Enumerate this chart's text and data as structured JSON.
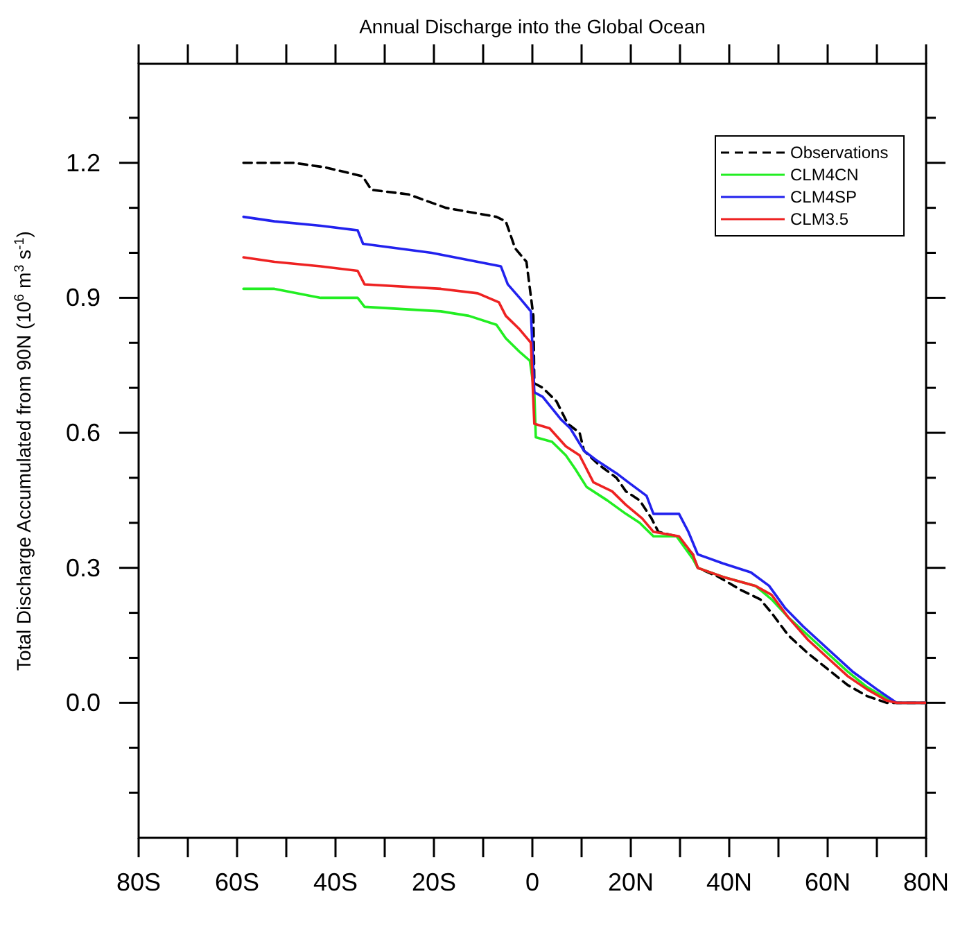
{
  "chart_data": {
    "type": "line",
    "title": "Annual Discharge into the Global Ocean",
    "ylabel": "Total Discharge Accumulated from 90N (10$^{6}$ m$^{3}$ s$^{-1}$)",
    "xlim": [
      -80,
      80
    ],
    "xticks": [
      {
        "value": -80,
        "label": "80S"
      },
      {
        "value": -70,
        "label": null
      },
      {
        "value": -60,
        "label": "60S"
      },
      {
        "value": -50,
        "label": null
      },
      {
        "value": -40,
        "label": "40S"
      },
      {
        "value": -30,
        "label": null
      },
      {
        "value": -20,
        "label": "20S"
      },
      {
        "value": -10,
        "label": null
      },
      {
        "value": 0,
        "label": "0"
      },
      {
        "value": 10,
        "label": null
      },
      {
        "value": 20,
        "label": "20N"
      },
      {
        "value": 30,
        "label": null
      },
      {
        "value": 40,
        "label": "40N"
      },
      {
        "value": 50,
        "label": null
      },
      {
        "value": 60,
        "label": "60N"
      },
      {
        "value": 70,
        "label": null
      },
      {
        "value": 80,
        "label": "80N"
      }
    ],
    "ylim": [
      -0.3,
      1.42
    ],
    "yticks": [
      {
        "value": -0.2,
        "label": null
      },
      {
        "value": -0.1,
        "label": null
      },
      {
        "value": 0,
        "label": "0.0"
      },
      {
        "value": 0.1,
        "label": null
      },
      {
        "value": 0.2,
        "label": null
      },
      {
        "value": 0.3,
        "label": "0.3"
      },
      {
        "value": 0.4,
        "label": null
      },
      {
        "value": 0.5,
        "label": null
      },
      {
        "value": 0.6,
        "label": "0.6"
      },
      {
        "value": 0.7,
        "label": null
      },
      {
        "value": 0.8,
        "label": null
      },
      {
        "value": 0.9,
        "label": "0.9"
      },
      {
        "value": 1.0,
        "label": null
      },
      {
        "value": 1.1,
        "label": null
      },
      {
        "value": 1.2,
        "label": "1.2"
      },
      {
        "value": 1.3,
        "label": null
      }
    ],
    "legend": "top right",
    "series": [
      {
        "name": "Observations",
        "color": "#000000",
        "line_style": "dashed",
        "x": [
          -58.7,
          -48.6,
          -42.1,
          -34.5,
          -32.7,
          -25.2,
          -17.6,
          -7.3,
          -5.4,
          -3.5,
          -1.2,
          0.2,
          0.4,
          2.1,
          4.9,
          7.2,
          9.6,
          10.5,
          13.4,
          17.1,
          19,
          21.8,
          24.2,
          25.6,
          29.3,
          32.6,
          33.6,
          37.8,
          42.5,
          46.3,
          48.6,
          52,
          56,
          60,
          64,
          68,
          72,
          80
        ],
        "values": [
          1.2,
          1.2,
          1.19,
          1.17,
          1.14,
          1.13,
          1.1,
          1.08,
          1.07,
          1.01,
          0.98,
          0.86,
          0.71,
          0.7,
          0.67,
          0.62,
          0.6,
          0.56,
          0.53,
          0.5,
          0.47,
          0.45,
          0.41,
          0.38,
          0.37,
          0.33,
          0.3,
          0.28,
          0.25,
          0.23,
          0.2,
          0.15,
          0.11,
          0.075,
          0.04,
          0.015,
          0,
          0
        ]
      },
      {
        "name": "CLM4CN",
        "color": "#22ee22",
        "line_style": "solid",
        "x": [
          -58.7,
          -52.4,
          -43,
          -35.5,
          -34.1,
          -18.6,
          -12.9,
          -7.3,
          -5.4,
          -2.6,
          -0.5,
          0.4,
          0.7,
          4,
          6.8,
          8.7,
          11,
          15.2,
          19,
          21.8,
          24.6,
          29.3,
          32.6,
          33.6,
          38.7,
          45.3,
          48.6,
          52,
          56,
          60,
          64,
          68,
          72,
          74,
          80
        ],
        "values": [
          0.92,
          0.92,
          0.9,
          0.9,
          0.88,
          0.87,
          0.86,
          0.84,
          0.81,
          0.78,
          0.76,
          0.69,
          0.59,
          0.58,
          0.55,
          0.52,
          0.48,
          0.45,
          0.42,
          0.4,
          0.37,
          0.37,
          0.32,
          0.3,
          0.28,
          0.26,
          0.23,
          0.19,
          0.15,
          0.11,
          0.07,
          0.035,
          0.01,
          0,
          0
        ]
      },
      {
        "name": "CLM4SP",
        "color": "#2222ee",
        "line_style": "solid",
        "x": [
          -58.7,
          -52.4,
          -43,
          -35.5,
          -34.4,
          -20.5,
          -11.1,
          -6.4,
          -5,
          -2.6,
          -0.3,
          0.4,
          2.1,
          5.8,
          7.7,
          10.5,
          12.9,
          17.1,
          19.5,
          23.2,
          24.6,
          29.8,
          31.7,
          33.6,
          38.7,
          44.4,
          48.1,
          51.4,
          55,
          60,
          65,
          70,
          74,
          80
        ],
        "values": [
          1.08,
          1.07,
          1.06,
          1.05,
          1.02,
          1.0,
          0.98,
          0.97,
          0.93,
          0.9,
          0.87,
          0.69,
          0.68,
          0.63,
          0.61,
          0.56,
          0.54,
          0.51,
          0.49,
          0.46,
          0.42,
          0.42,
          0.38,
          0.33,
          0.31,
          0.29,
          0.26,
          0.21,
          0.17,
          0.12,
          0.07,
          0.03,
          0,
          0
        ]
      },
      {
        "name": "CLM3.5",
        "color": "#ee2222",
        "line_style": "solid",
        "x": [
          -58.7,
          -52.4,
          -43,
          -35.5,
          -34.1,
          -18.6,
          -11.1,
          -6.8,
          -5.4,
          -2.6,
          -0.3,
          0.4,
          3.5,
          6.8,
          9.6,
          12.4,
          16.2,
          19,
          22.3,
          24.6,
          29.8,
          32.6,
          33.6,
          38.7,
          45.3,
          48.6,
          52,
          56,
          60,
          64,
          68,
          72,
          74,
          80
        ],
        "values": [
          0.99,
          0.98,
          0.97,
          0.96,
          0.93,
          0.92,
          0.91,
          0.89,
          0.86,
          0.83,
          0.8,
          0.62,
          0.61,
          0.57,
          0.55,
          0.49,
          0.47,
          0.44,
          0.41,
          0.38,
          0.37,
          0.33,
          0.3,
          0.28,
          0.26,
          0.24,
          0.19,
          0.14,
          0.1,
          0.06,
          0.03,
          0.005,
          0,
          0
        ]
      }
    ]
  }
}
